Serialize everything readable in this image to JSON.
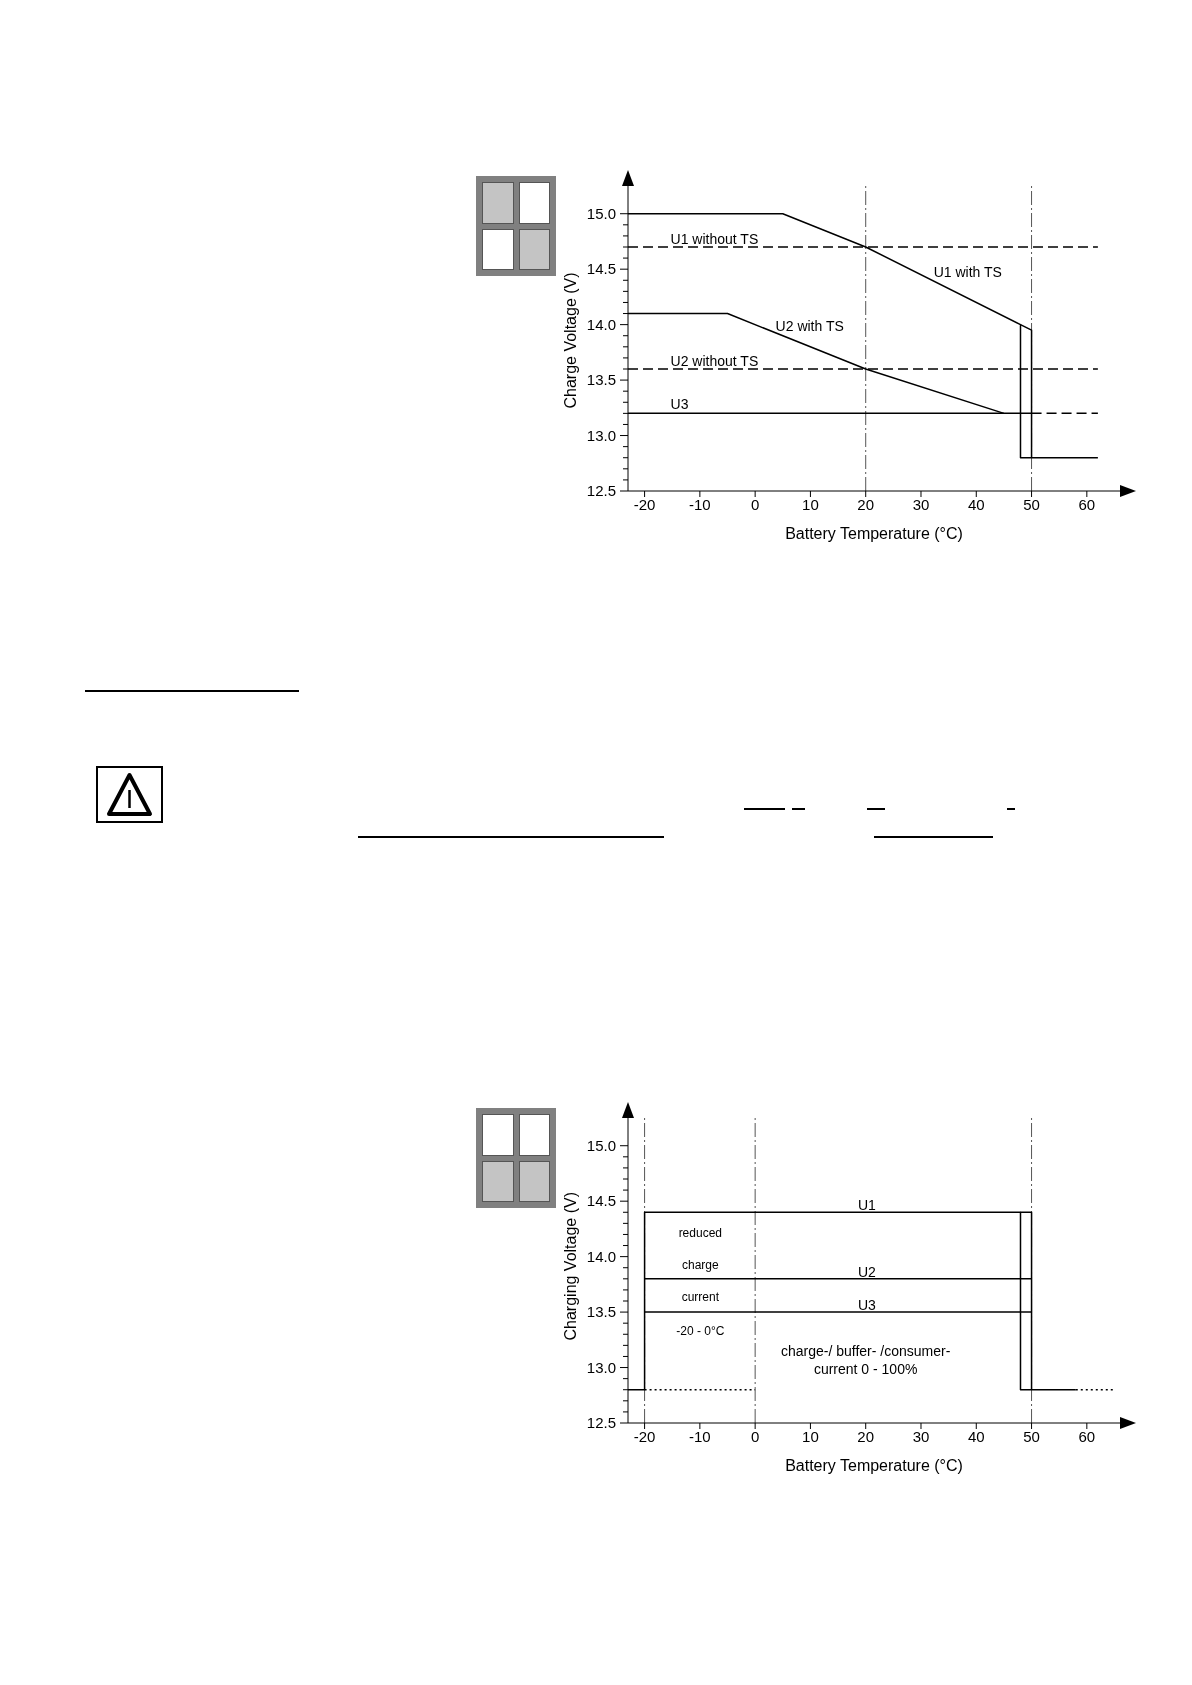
{
  "chart_data": [
    {
      "type": "line",
      "xlabel": "Battery Temperature (°C)",
      "ylabel": "Charge Voltage (V)",
      "marker": "none",
      "xlim": [
        -23,
        66
      ],
      "xticks": [
        -20,
        -10,
        0,
        10,
        20,
        30,
        40,
        50,
        60
      ],
      "ylim": [
        12.5,
        15.25
      ],
      "yticks": [
        {
          "value": 12.5,
          "label": "12.5"
        },
        {
          "value": 12.6,
          "label": null
        },
        {
          "value": 12.7,
          "label": null
        },
        {
          "value": 12.8,
          "label": null
        },
        {
          "value": 12.9,
          "label": null
        },
        {
          "value": 13,
          "label": "13.0"
        },
        {
          "value": 13.1,
          "label": null
        },
        {
          "value": 13.2,
          "label": null
        },
        {
          "value": 13.3,
          "label": null
        },
        {
          "value": 13.4,
          "label": null
        },
        {
          "value": 13.5,
          "label": "13.5"
        },
        {
          "value": 13.6,
          "label": null
        },
        {
          "value": 13.7,
          "label": null
        },
        {
          "value": 13.8,
          "label": null
        },
        {
          "value": 13.9,
          "label": null
        },
        {
          "value": 14,
          "label": "14.0"
        },
        {
          "value": 14.1,
          "label": null
        },
        {
          "value": 14.2,
          "label": null
        },
        {
          "value": 14.3,
          "label": null
        },
        {
          "value": 14.4,
          "label": null
        },
        {
          "value": 14.5,
          "label": "14.5"
        },
        {
          "value": 14.6,
          "label": null
        },
        {
          "value": 14.7,
          "label": null
        },
        {
          "value": 14.8,
          "label": null
        },
        {
          "value": 14.9,
          "label": null
        },
        {
          "value": 15,
          "label": "15.0"
        }
      ],
      "series": [
        {
          "color": "#000000",
          "x": [
            -23,
            5,
            20,
            48,
            48,
            62
          ],
          "values": [
            15,
            15,
            14.7,
            14,
            12.8,
            12.8
          ]
        },
        {
          "color": "#000000",
          "x": [
            48,
            50,
            50
          ],
          "values": [
            14,
            13.95,
            12.8
          ]
        },
        {
          "color": "#000000",
          "line_style": "dashed",
          "x": [
            -23,
            62
          ],
          "values": [
            14.7,
            14.7
          ]
        },
        {
          "color": "#000000",
          "x": [
            -23,
            -5,
            20,
            45
          ],
          "values": [
            14.1,
            14.1,
            13.6,
            13.2
          ]
        },
        {
          "color": "#000000",
          "line_style": "dashed",
          "x": [
            -23,
            62
          ],
          "values": [
            13.6,
            13.6
          ]
        },
        {
          "color": "#000000",
          "x": [
            -23,
            50
          ],
          "values": [
            13.2,
            13.2
          ]
        },
        {
          "color": "#000000",
          "line_style": "dashed",
          "x": [
            50,
            62
          ],
          "values": [
            13.2,
            13.2
          ]
        }
      ],
      "ref_lines": [
        {
          "axis": "x",
          "value": 20,
          "color": "#555555",
          "line_style": "dashdot"
        },
        {
          "axis": "x",
          "value": 50,
          "color": "#555555",
          "line_style": "dashdot"
        }
      ],
      "annotations": [
        {
          "text": "U1 without TS",
          "x": -15.3,
          "y": 14.73
        },
        {
          "text": "U1 with TS",
          "x": 32.3,
          "y": 14.43
        },
        {
          "text": "U2 with TS",
          "x": 3.7,
          "y": 13.94
        },
        {
          "text": "U2 without TS",
          "x": -15.3,
          "y": 13.63
        },
        {
          "text": "U3",
          "x": -15.3,
          "y": 13.24
        }
      ]
    },
    {
      "type": "line",
      "xlabel": "Battery Temperature (°C)",
      "ylabel": "Charging Voltage (V)",
      "marker": "none",
      "xlim": [
        -23,
        66
      ],
      "xticks": [
        -20,
        -10,
        0,
        10,
        20,
        30,
        40,
        50,
        60
      ],
      "ylim": [
        12.5,
        15.25
      ],
      "yticks": [
        {
          "value": 12.5,
          "label": "12.5"
        },
        {
          "value": 12.6,
          "label": null
        },
        {
          "value": 12.7,
          "label": null
        },
        {
          "value": 12.8,
          "label": null
        },
        {
          "value": 12.9,
          "label": null
        },
        {
          "value": 13,
          "label": "13.0"
        },
        {
          "value": 13.1,
          "label": null
        },
        {
          "value": 13.2,
          "label": null
        },
        {
          "value": 13.3,
          "label": null
        },
        {
          "value": 13.4,
          "label": null
        },
        {
          "value": 13.5,
          "label": "13.5"
        },
        {
          "value": 13.6,
          "label": null
        },
        {
          "value": 13.7,
          "label": null
        },
        {
          "value": 13.8,
          "label": null
        },
        {
          "value": 13.9,
          "label": null
        },
        {
          "value": 14,
          "label": "14.0"
        },
        {
          "value": 14.1,
          "label": null
        },
        {
          "value": 14.2,
          "label": null
        },
        {
          "value": 14.3,
          "label": null
        },
        {
          "value": 14.4,
          "label": null
        },
        {
          "value": 14.5,
          "label": "14.5"
        },
        {
          "value": 14.6,
          "label": null
        },
        {
          "value": 14.7,
          "label": null
        },
        {
          "value": 14.8,
          "label": null
        },
        {
          "value": 14.9,
          "label": null
        },
        {
          "value": 15,
          "label": "15.0"
        }
      ],
      "series": [
        {
          "color": "#000000",
          "x": [
            -23,
            -20,
            -20,
            48,
            48,
            58
          ],
          "values": [
            12.8,
            12.8,
            14.4,
            14.4,
            12.8,
            12.8
          ]
        },
        {
          "color": "#000000",
          "x": [
            48,
            50,
            50
          ],
          "values": [
            14.4,
            14.4,
            12.8
          ]
        },
        {
          "color": "#000000",
          "x": [
            -20,
            50
          ],
          "values": [
            13.8,
            13.8
          ]
        },
        {
          "color": "#000000",
          "x": [
            -20,
            50
          ],
          "values": [
            13.5,
            13.5
          ]
        },
        {
          "color": "#000000",
          "line_style": "dotted",
          "x": [
            -20,
            0
          ],
          "values": [
            12.8,
            12.8
          ]
        },
        {
          "color": "#000000",
          "line_style": "dotted",
          "x": [
            58,
            65
          ],
          "values": [
            12.8,
            12.8
          ]
        }
      ],
      "ref_lines": [
        {
          "axis": "x",
          "value": -20,
          "color": "#555555",
          "line_style": "dashdot"
        },
        {
          "axis": "x",
          "value": 0,
          "color": "#555555",
          "line_style": "dashdot"
        },
        {
          "axis": "x",
          "value": 50,
          "color": "#555555",
          "line_style": "dashdot"
        }
      ],
      "annotations": [
        {
          "text": "U1",
          "x": 18.6,
          "y": 14.42
        },
        {
          "text": "U2",
          "x": 18.6,
          "y": 13.82
        },
        {
          "text": "U3",
          "x": 18.6,
          "y": 13.52
        },
        "reduced",
        "charge",
        "current",
        "-20 - 0°C",
        "charge-/ buffer- /consumer-",
        "current 0 - 100%"
      ]
    }
  ]
}
